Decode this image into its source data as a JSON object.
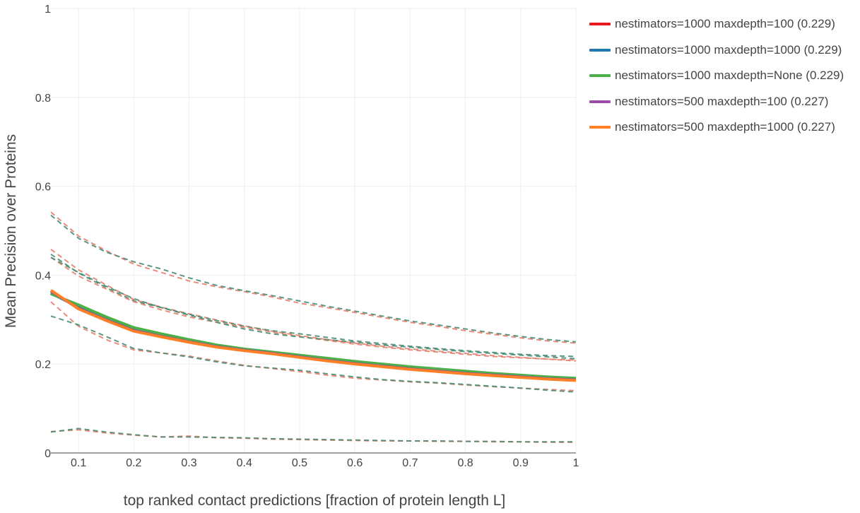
{
  "chart_data": {
    "type": "line",
    "title": "",
    "xlabel": "top ranked contact predictions [fraction of protein length L]",
    "ylabel": "Mean Precision over Proteins",
    "xlim": [
      0.05,
      1.0
    ],
    "ylim": [
      0,
      1
    ],
    "xticks": [
      "0.1",
      "0.2",
      "0.3",
      "0.4",
      "0.5",
      "0.6",
      "0.7",
      "0.8",
      "0.9",
      "1"
    ],
    "yticks": [
      "0",
      "0.2",
      "0.4",
      "0.6",
      "0.8",
      "1"
    ],
    "grid": true,
    "legend_position": "top-right outside",
    "x": [
      0.05,
      0.1,
      0.15,
      0.2,
      0.25,
      0.3,
      0.35,
      0.4,
      0.45,
      0.5,
      0.55,
      0.6,
      0.65,
      0.7,
      0.75,
      0.8,
      0.85,
      0.9,
      0.95,
      1.0
    ],
    "series": [
      {
        "name": "nestimators=1000 maxdepth=100 (0.229)",
        "color": "#e41a1c",
        "values": [
          0.36,
          0.328,
          0.303,
          0.279,
          0.265,
          0.253,
          0.241,
          0.232,
          0.225,
          0.218,
          0.21,
          0.203,
          0.197,
          0.191,
          0.186,
          0.181,
          0.177,
          0.173,
          0.169,
          0.166
        ]
      },
      {
        "name": "nestimators=1000 maxdepth=1000 (0.229)",
        "color": "#1f78b4",
        "values": [
          0.36,
          0.328,
          0.303,
          0.279,
          0.265,
          0.253,
          0.241,
          0.232,
          0.225,
          0.218,
          0.21,
          0.203,
          0.197,
          0.191,
          0.186,
          0.181,
          0.177,
          0.173,
          0.169,
          0.166
        ]
      },
      {
        "name": "nestimators=1000 maxdepth=None (0.229)",
        "color": "#4daf4a",
        "values": [
          0.358,
          0.333,
          0.306,
          0.282,
          0.268,
          0.255,
          0.243,
          0.234,
          0.227,
          0.22,
          0.213,
          0.206,
          0.2,
          0.194,
          0.189,
          0.184,
          0.179,
          0.175,
          0.171,
          0.168
        ]
      },
      {
        "name": "nestimators=500 maxdepth=100 (0.227)",
        "color": "#984ea3",
        "values": [
          0.364,
          0.325,
          0.299,
          0.275,
          0.262,
          0.25,
          0.239,
          0.231,
          0.224,
          0.216,
          0.208,
          0.201,
          0.195,
          0.189,
          0.184,
          0.179,
          0.175,
          0.171,
          0.167,
          0.164
        ]
      },
      {
        "name": "nestimators=500 maxdepth=1000 (0.227)",
        "color": "#ff7f27",
        "values": [
          0.366,
          0.324,
          0.298,
          0.274,
          0.261,
          0.249,
          0.238,
          0.23,
          0.223,
          0.215,
          0.207,
          0.2,
          0.194,
          0.188,
          0.183,
          0.178,
          0.174,
          0.17,
          0.166,
          0.163
        ]
      }
    ],
    "dashed_bands": [
      {
        "color": "#e8806a",
        "values": [
          0.542,
          0.488,
          0.455,
          0.425,
          0.406,
          0.387,
          0.374,
          0.363,
          0.351,
          0.337,
          0.327,
          0.316,
          0.305,
          0.294,
          0.285,
          0.275,
          0.267,
          0.259,
          0.252,
          0.247
        ]
      },
      {
        "color": "#4a8c73",
        "values": [
          0.535,
          0.483,
          0.452,
          0.43,
          0.414,
          0.394,
          0.377,
          0.365,
          0.354,
          0.342,
          0.33,
          0.319,
          0.308,
          0.297,
          0.288,
          0.279,
          0.27,
          0.262,
          0.255,
          0.25
        ]
      },
      {
        "color": "#e8806a",
        "values": [
          0.458,
          0.412,
          0.378,
          0.345,
          0.328,
          0.313,
          0.299,
          0.286,
          0.274,
          0.264,
          0.255,
          0.247,
          0.24,
          0.234,
          0.229,
          0.224,
          0.219,
          0.215,
          0.211,
          0.207
        ]
      },
      {
        "color": "#4a8c73",
        "values": [
          0.447,
          0.405,
          0.372,
          0.342,
          0.327,
          0.312,
          0.298,
          0.285,
          0.275,
          0.268,
          0.26,
          0.252,
          0.246,
          0.24,
          0.235,
          0.23,
          0.226,
          0.222,
          0.219,
          0.217
        ]
      },
      {
        "color": "#e8806a",
        "values": [
          0.44,
          0.398,
          0.369,
          0.34,
          0.322,
          0.306,
          0.294,
          0.283,
          0.272,
          0.262,
          0.253,
          0.245,
          0.238,
          0.232,
          0.227,
          0.222,
          0.217,
          0.214,
          0.211,
          0.209
        ]
      },
      {
        "color": "#4a8c73",
        "values": [
          0.44,
          0.406,
          0.375,
          0.347,
          0.327,
          0.31,
          0.294,
          0.279,
          0.268,
          0.261,
          0.255,
          0.249,
          0.243,
          0.238,
          0.233,
          0.228,
          0.224,
          0.22,
          0.216,
          0.212
        ]
      },
      {
        "color": "#e8806a",
        "values": [
          0.34,
          0.285,
          0.255,
          0.232,
          0.225,
          0.218,
          0.207,
          0.197,
          0.19,
          0.183,
          0.175,
          0.168,
          0.164,
          0.16,
          0.157,
          0.153,
          0.149,
          0.146,
          0.143,
          0.14
        ]
      },
      {
        "color": "#4a8c73",
        "values": [
          0.308,
          0.288,
          0.262,
          0.235,
          0.225,
          0.216,
          0.205,
          0.196,
          0.191,
          0.186,
          0.178,
          0.171,
          0.165,
          0.161,
          0.158,
          0.154,
          0.15,
          0.146,
          0.141,
          0.137
        ]
      },
      {
        "color": "#e8806a",
        "values": [
          0.048,
          0.052,
          0.045,
          0.04,
          0.036,
          0.038,
          0.034,
          0.033,
          0.031,
          0.03,
          0.029,
          0.028,
          0.027,
          0.027,
          0.026,
          0.026,
          0.025,
          0.025,
          0.024,
          0.024
        ]
      },
      {
        "color": "#4a8c73",
        "values": [
          0.047,
          0.055,
          0.047,
          0.041,
          0.036,
          0.036,
          0.035,
          0.034,
          0.032,
          0.031,
          0.03,
          0.029,
          0.028,
          0.027,
          0.027,
          0.026,
          0.026,
          0.025,
          0.025,
          0.025
        ]
      }
    ]
  }
}
